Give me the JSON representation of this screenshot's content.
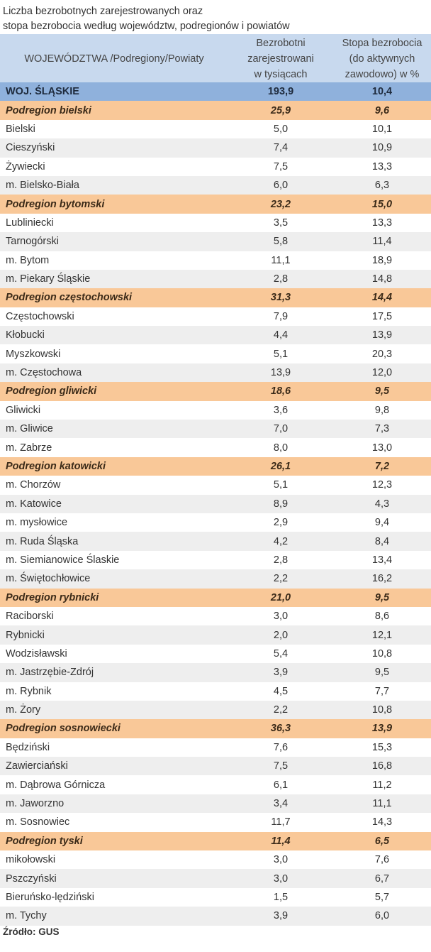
{
  "title": {
    "line1": "Liczba bezrobotnych zarejestrowanych oraz",
    "line2": "stopa bezrobocia według województw, podregionów  i  powiatów"
  },
  "table": {
    "headers": {
      "col1": "WOJEWÓDZTWA /Podregiony/Powiaty",
      "col2": [
        "Bezrobotni",
        "zarejestrowani",
        "w tysiącach"
      ],
      "col3": [
        "Stopa bezrobocia",
        "(do aktywnych",
        "zawodowo) w %"
      ]
    },
    "voivodeship": {
      "name": "WOJ. ŚLĄSKIE",
      "unemployed": "193,9",
      "rate": "10,4"
    },
    "subregions": [
      {
        "name": "Podregion bielski",
        "unemployed": "25,9",
        "rate": "9,6",
        "rows": [
          {
            "name": "Bielski",
            "unemployed": "5,0",
            "rate": "10,1"
          },
          {
            "name": "Cieszyński",
            "unemployed": "7,4",
            "rate": "10,9"
          },
          {
            "name": "Żywiecki",
            "unemployed": "7,5",
            "rate": "13,3"
          },
          {
            "name": "m. Bielsko-Biała",
            "unemployed": "6,0",
            "rate": "6,3"
          }
        ]
      },
      {
        "name": "Podregion bytomski",
        "unemployed": "23,2",
        "rate": "15,0",
        "rows": [
          {
            "name": "Lubliniecki",
            "unemployed": "3,5",
            "rate": "13,3"
          },
          {
            "name": "Tarnogórski",
            "unemployed": "5,8",
            "rate": "11,4"
          },
          {
            "name": "m. Bytom",
            "unemployed": "11,1",
            "rate": "18,9"
          },
          {
            "name": "m. Piekary Śląskie",
            "unemployed": "2,8",
            "rate": "14,8"
          }
        ]
      },
      {
        "name": "Podregion częstochowski",
        "unemployed": "31,3",
        "rate": "14,4",
        "rows": [
          {
            "name": "Częstochowski",
            "unemployed": "7,9",
            "rate": "17,5"
          },
          {
            "name": "Kłobucki",
            "unemployed": "4,4",
            "rate": "13,9"
          },
          {
            "name": "Myszkowski",
            "unemployed": "5,1",
            "rate": "20,3"
          },
          {
            "name": "m. Częstochowa",
            "unemployed": "13,9",
            "rate": "12,0"
          }
        ]
      },
      {
        "name": "Podregion gliwicki",
        "unemployed": "18,6",
        "rate": "9,5",
        "rows": [
          {
            "name": "Gliwicki",
            "unemployed": "3,6",
            "rate": "9,8"
          },
          {
            "name": "m. Gliwice",
            "unemployed": "7,0",
            "rate": "7,3"
          },
          {
            "name": "m. Zabrze",
            "unemployed": "8,0",
            "rate": "13,0"
          }
        ]
      },
      {
        "name": "Podregion katowicki",
        "unemployed": "26,1",
        "rate": "7,2",
        "rows": [
          {
            "name": "m. Chorzów",
            "unemployed": "5,1",
            "rate": "12,3"
          },
          {
            "name": "m. Katowice",
            "unemployed": "8,9",
            "rate": "4,3"
          },
          {
            "name": "m. mysłowice",
            "unemployed": "2,9",
            "rate": "9,4"
          },
          {
            "name": "m. Ruda Śląska",
            "unemployed": "4,2",
            "rate": "8,4"
          },
          {
            "name": "m. Siemianowice Ślaskie",
            "unemployed": "2,8",
            "rate": "13,4"
          },
          {
            "name": "m. Świętochłowice",
            "unemployed": "2,2",
            "rate": "16,2"
          }
        ]
      },
      {
        "name": "Podregion rybnicki",
        "unemployed": "21,0",
        "rate": "9,5",
        "rows": [
          {
            "name": "Raciborski",
            "unemployed": "3,0",
            "rate": "8,6"
          },
          {
            "name": "Rybnicki",
            "unemployed": "2,0",
            "rate": "12,1"
          },
          {
            "name": "Wodzisławski",
            "unemployed": "5,4",
            "rate": "10,8"
          },
          {
            "name": "m. Jastrzębie-Zdrój",
            "unemployed": "3,9",
            "rate": "9,5"
          },
          {
            "name": "m. Rybnik",
            "unemployed": "4,5",
            "rate": "7,7"
          },
          {
            "name": "m. Żory",
            "unemployed": "2,2",
            "rate": "10,8"
          }
        ]
      },
      {
        "name": "Podregion sosnowiecki",
        "unemployed": "36,3",
        "rate": "13,9",
        "rows": [
          {
            "name": "Będziński",
            "unemployed": "7,6",
            "rate": "15,3"
          },
          {
            "name": "Zawierciański",
            "unemployed": "7,5",
            "rate": "16,8"
          },
          {
            "name": "m. Dąbrowa Górnicza",
            "unemployed": "6,1",
            "rate": "11,2"
          },
          {
            "name": "m. Jaworzno",
            "unemployed": "3,4",
            "rate": "11,1"
          },
          {
            "name": "m. Sosnowiec",
            "unemployed": "11,7",
            "rate": "14,3"
          }
        ]
      },
      {
        "name": "Podregion tyski",
        "unemployed": "11,4",
        "rate": "6,5",
        "rows": [
          {
            "name": "mikołowski",
            "unemployed": "3,0",
            "rate": "7,6"
          },
          {
            "name": "Pszczyński",
            "unemployed": "3,0",
            "rate": "6,7"
          },
          {
            "name": "Bieruńsko-lędziński",
            "unemployed": "1,5",
            "rate": "5,7"
          },
          {
            "name": "m. Tychy",
            "unemployed": "3,9",
            "rate": "6,0"
          }
        ]
      }
    ]
  },
  "source": "Źródło: GUS",
  "colors": {
    "header_bg": "#c8d9ee",
    "voivodeship_bg": "#8fb1dc",
    "subregion_bg": "#f9c898",
    "row_alt_bg": "#eeeeee"
  }
}
